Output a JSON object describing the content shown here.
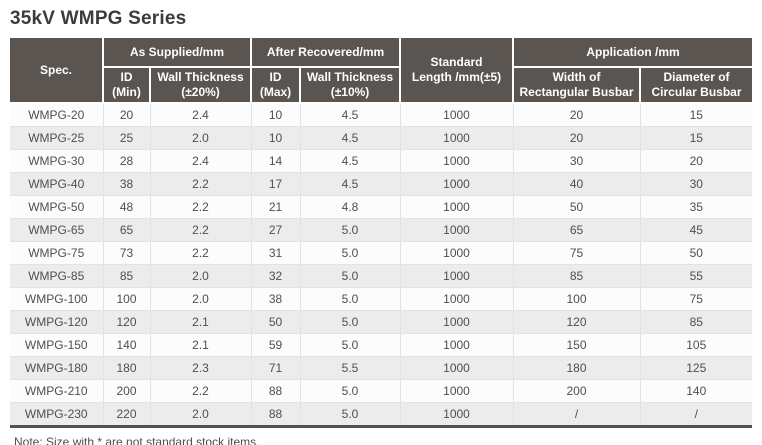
{
  "page": {
    "title": "35kV WMPG Series",
    "note": "Note: Size with * are not standard stock items."
  },
  "table": {
    "header": {
      "spec": "Spec.",
      "as_supplied": "As Supplied/mm",
      "after_recovered": "After Recovered/mm",
      "application": "Application /mm",
      "standard_length": {
        "line1": "Standard",
        "line2": "Length /mm(±5)"
      },
      "id_min": {
        "line1": "ID",
        "line2": "(Min)"
      },
      "wall_thickness_20": {
        "line1": "Wall Thickness",
        "line2": "(±20%)"
      },
      "id_max": {
        "line1": "ID",
        "line2": "(Max)"
      },
      "wall_thickness_10": {
        "line1": "Wall Thickness",
        "line2": "(±10%)"
      },
      "width_rectangular": {
        "line1": "Width of",
        "line2": "Rectangular Busbar"
      },
      "diameter_circular": {
        "line1": "Diameter of",
        "line2": "Circular Busbar"
      }
    },
    "rows": [
      [
        "WMPG-20",
        "20",
        "2.4",
        "10",
        "4.5",
        "1000",
        "20",
        "15"
      ],
      [
        "WMPG-25",
        "25",
        "2.0",
        "10",
        "4.5",
        "1000",
        "20",
        "15"
      ],
      [
        "WMPG-30",
        "28",
        "2.4",
        "14",
        "4.5",
        "1000",
        "30",
        "20"
      ],
      [
        "WMPG-40",
        "38",
        "2.2",
        "17",
        "4.5",
        "1000",
        "40",
        "30"
      ],
      [
        "WMPG-50",
        "48",
        "2.2",
        "21",
        "4.8",
        "1000",
        "50",
        "35"
      ],
      [
        "WMPG-65",
        "65",
        "2.2",
        "27",
        "5.0",
        "1000",
        "65",
        "45"
      ],
      [
        "WMPG-75",
        "73",
        "2.2",
        "31",
        "5.0",
        "1000",
        "75",
        "50"
      ],
      [
        "WMPG-85",
        "85",
        "2.0",
        "32",
        "5.0",
        "1000",
        "85",
        "55"
      ],
      [
        "WMPG-100",
        "100",
        "2.0",
        "38",
        "5.0",
        "1000",
        "100",
        "75"
      ],
      [
        "WMPG-120",
        "120",
        "2.1",
        "50",
        "5.0",
        "1000",
        "120",
        "85"
      ],
      [
        "WMPG-150",
        "140",
        "2.1",
        "59",
        "5.0",
        "1000",
        "150",
        "105"
      ],
      [
        "WMPG-180",
        "180",
        "2.3",
        "71",
        "5.5",
        "1000",
        "180",
        "125"
      ],
      [
        "WMPG-210",
        "200",
        "2.2",
        "88",
        "5.0",
        "1000",
        "200",
        "140"
      ],
      [
        "WMPG-230",
        "220",
        "2.0",
        "88",
        "5.0",
        "1000",
        "/",
        "/"
      ]
    ],
    "colors": {
      "header_background": "#5a5551",
      "header_text": "#ffffff",
      "row_odd": "#fcfcfc",
      "row_even": "#ececec",
      "grid_line": "#e3e3e3",
      "bottom_border": "#55504d",
      "body_text": "#4f4f4f"
    }
  }
}
